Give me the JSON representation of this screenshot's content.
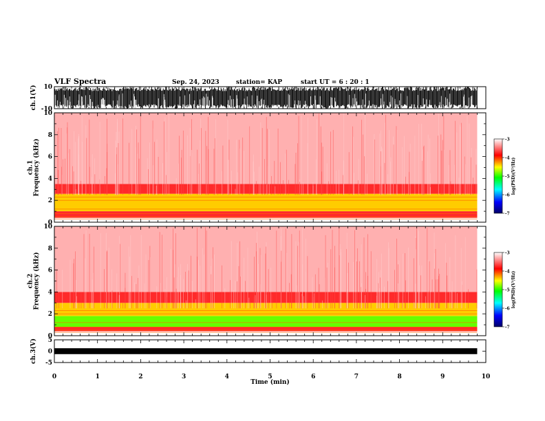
{
  "header": {
    "title": "VLF Spectra",
    "date": "Sep. 24, 2023",
    "station": "station= KAP",
    "start": "start  UT =   6 : 20 : 1"
  },
  "colors": {
    "spectrogram_low": "#ffffff",
    "spectrogram_mid": "#ff0000",
    "spectrogram_high": "#ffd700",
    "spectrogram_peak": "#00ff00",
    "colorbar": [
      "#000066",
      "#0000ff",
      "#00ffff",
      "#00ff00",
      "#ffff00",
      "#ff0000",
      "#ffffff"
    ]
  },
  "chart_data": [
    {
      "type": "line",
      "panel": "ch1-waveform",
      "ylabel": "ch.1(V)",
      "ylim": [
        -10,
        10
      ],
      "yticks": [
        "10",
        "-10"
      ],
      "xlim": [
        0,
        10
      ],
      "description_series": "dense black waveform filling most of the range",
      "x_extent": [
        0,
        9.8
      ]
    },
    {
      "type": "heatmap",
      "panel": "ch1-spectrogram",
      "ylabel": "ch.1\nFrequency (kHz)",
      "ylim": [
        0,
        10
      ],
      "yticks": [
        "0",
        "2",
        "4",
        "6",
        "8",
        "10"
      ],
      "xlim": [
        0,
        10
      ],
      "x_extent": [
        0,
        9.8
      ],
      "colorbar": {
        "label": "log(PSD)(V²/Hz)",
        "range": [
          -7,
          -3
        ],
        "ticks": [
          "-3",
          "-4",
          "-5",
          "-6",
          "-7"
        ]
      },
      "bands": [
        {
          "f_min": 0,
          "f_max": 0.4,
          "level": "white"
        },
        {
          "f_min": 0.4,
          "f_max": 1.0,
          "level": "red"
        },
        {
          "f_min": 1.0,
          "f_max": 2.6,
          "level": "yellow"
        },
        {
          "f_min": 2.6,
          "f_max": 3.5,
          "level": "red"
        },
        {
          "f_min": 3.5,
          "f_max": 10,
          "level": "light red"
        }
      ]
    },
    {
      "type": "heatmap",
      "panel": "ch2-spectrogram",
      "ylabel": "ch.2\nFrequency (kHz)",
      "ylim": [
        0,
        10
      ],
      "yticks": [
        "0",
        "2",
        "4",
        "6",
        "8",
        "10"
      ],
      "xlim": [
        0,
        10
      ],
      "x_extent": [
        0,
        9.8
      ],
      "colorbar": {
        "label": "log(PSD)(V²/Hz)",
        "range": [
          -7,
          -3
        ],
        "ticks": [
          "-3",
          "-4",
          "-5",
          "-6",
          "-7"
        ]
      },
      "bands": [
        {
          "f_min": 0,
          "f_max": 0.4,
          "level": "white"
        },
        {
          "f_min": 0.4,
          "f_max": 0.8,
          "level": "red"
        },
        {
          "f_min": 0.8,
          "f_max": 1.8,
          "level": "green"
        },
        {
          "f_min": 1.8,
          "f_max": 3.0,
          "level": "yellow"
        },
        {
          "f_min": 3.0,
          "f_max": 4.0,
          "level": "red"
        },
        {
          "f_min": 4.0,
          "f_max": 10,
          "level": "light red"
        }
      ]
    },
    {
      "type": "line",
      "panel": "ch3-waveform",
      "ylabel": "ch.3(V)",
      "ylim": [
        -5,
        5
      ],
      "yticks": [
        "5",
        "0",
        "-5"
      ],
      "xlim": [
        0,
        10
      ],
      "x_extent": [
        0,
        9.8
      ],
      "xlabel": "Time (min)",
      "xticks": [
        "0",
        "1",
        "2",
        "3",
        "4",
        "5",
        "6",
        "7",
        "8",
        "9",
        "10"
      ]
    }
  ]
}
